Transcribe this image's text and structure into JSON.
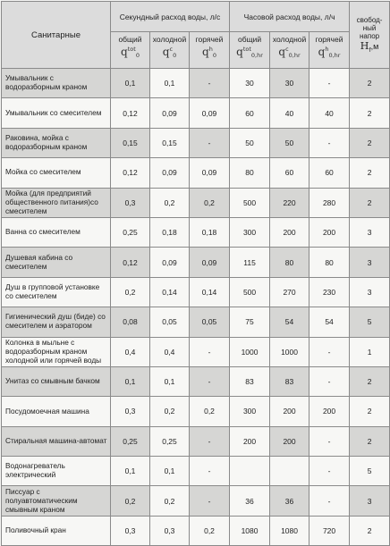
{
  "headers": {
    "fixture": "Санитарные",
    "sec_group": "Секундный расход воды, л/с",
    "hour_group": "Часовой расход воды, л/ч",
    "pressure_line1": "свобод-",
    "pressure_line2": "ный",
    "pressure_line3": "напор",
    "pressure_symbol": "H",
    "pressure_sub": "f",
    "pressure_unit": ",м",
    "total": "общий",
    "cold": "холодной",
    "hot": "горячей",
    "q": "q",
    "q0_sub": "0",
    "q0hr_sub": "0,hr",
    "sup_tot": "tot",
    "sup_c": "c",
    "sup_h": "h"
  },
  "rows": [
    {
      "name": "Умывальник с водоразборным краном",
      "q_tot": "0,1",
      "q_c": "0,1",
      "q_h": "-",
      "qh_tot": "30",
      "qh_c": "30",
      "qh_h": "-",
      "hf": "2"
    },
    {
      "name": "Умывальник со смесителем",
      "q_tot": "0,12",
      "q_c": "0,09",
      "q_h": "0,09",
      "qh_tot": "60",
      "qh_c": "40",
      "qh_h": "40",
      "hf": "2"
    },
    {
      "name": "Раковина, мойка с водоразборным краном",
      "q_tot": "0,15",
      "q_c": "0,15",
      "q_h": "-",
      "qh_tot": "50",
      "qh_c": "50",
      "qh_h": "-",
      "hf": "2"
    },
    {
      "name": "Мойка со смесителем",
      "q_tot": "0,12",
      "q_c": "0,09",
      "q_h": "0,09",
      "qh_tot": "80",
      "qh_c": "60",
      "qh_h": "60",
      "hf": "2"
    },
    {
      "name": "Мойка (для предприятий общественного питания)со смесителем",
      "q_tot": "0,3",
      "q_c": "0,2",
      "q_h": "0,2",
      "qh_tot": "500",
      "qh_c": "220",
      "qh_h": "280",
      "hf": "2"
    },
    {
      "name": "Ванна со смесителем",
      "q_tot": "0,25",
      "q_c": "0,18",
      "q_h": "0,18",
      "qh_tot": "300",
      "qh_c": "200",
      "qh_h": "200",
      "hf": "3"
    },
    {
      "name": "Душевая кабина со смесителем",
      "q_tot": "0,12",
      "q_c": "0,09",
      "q_h": "0,09",
      "qh_tot": "115",
      "qh_c": "80",
      "qh_h": "80",
      "hf": "3"
    },
    {
      "name": "Душ в групповой установке со смесителем",
      "q_tot": "0,2",
      "q_c": "0,14",
      "q_h": "0,14",
      "qh_tot": "500",
      "qh_c": "270",
      "qh_h": "230",
      "hf": "3"
    },
    {
      "name": "Гигиенический душ (биде) со смесителем и аэратором",
      "q_tot": "0,08",
      "q_c": "0,05",
      "q_h": "0,05",
      "qh_tot": "75",
      "qh_c": "54",
      "qh_h": "54",
      "hf": "5"
    },
    {
      "name": "Колонка в мыльне с водоразборным краном холодной или горячей воды",
      "q_tot": "0,4",
      "q_c": "0,4",
      "q_h": "-",
      "qh_tot": "1000",
      "qh_c": "1000",
      "qh_h": "-",
      "hf": "1"
    },
    {
      "name": "Унитаз со смывным бачком",
      "q_tot": "0,1",
      "q_c": "0,1",
      "q_h": "-",
      "qh_tot": "83",
      "qh_c": "83",
      "qh_h": "-",
      "hf": "2"
    },
    {
      "name": "Посудомоечная машина",
      "q_tot": "0,3",
      "q_c": "0,2",
      "q_h": "0,2",
      "qh_tot": "300",
      "qh_c": "200",
      "qh_h": "200",
      "hf": "2"
    },
    {
      "name": "Стиральная машина-автомат",
      "q_tot": "0,25",
      "q_c": "0,25",
      "q_h": "-",
      "qh_tot": "200",
      "qh_c": "200",
      "qh_h": "-",
      "hf": "2"
    },
    {
      "name": "Водонагреватель электрический",
      "q_tot": "0,1",
      "q_c": "0,1",
      "q_h": "-",
      "qh_tot": "",
      "qh_c": "",
      "qh_h": "-",
      "hf": "5"
    },
    {
      "name": "Писсуар с полуавтоматическим смывным краном",
      "q_tot": "0,2",
      "q_c": "0,2",
      "q_h": "-",
      "qh_tot": "36",
      "qh_c": "36",
      "qh_h": "-",
      "hf": "3"
    },
    {
      "name": "Поливочный кран",
      "q_tot": "0,3",
      "q_c": "0,3",
      "q_h": "0,2",
      "qh_tot": "1080",
      "qh_c": "1080",
      "qh_h": "720",
      "hf": "2"
    }
  ]
}
